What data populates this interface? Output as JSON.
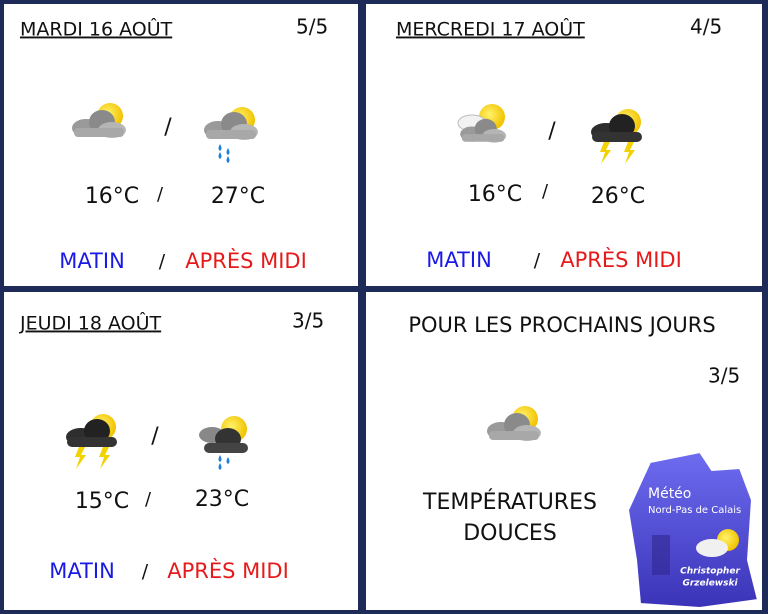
{
  "days": [
    {
      "title": "MARDI 16 AOÛT",
      "rating": "5/5",
      "separator": "/",
      "morning_temp": "16°C",
      "afternoon_temp": "27°C",
      "morning_label": "MATIN",
      "afternoon_label": "APRÈS MIDI"
    },
    {
      "title": "MERCREDI 17 AOÛT",
      "rating": "4/5",
      "separator": "/",
      "morning_temp": "16°C",
      "afternoon_temp": "26°C",
      "morning_label": "MATIN",
      "afternoon_label": "APRÈS MIDI"
    },
    {
      "title": "JEUDI 18 AOÛT",
      "rating": "3/5",
      "separator": "/",
      "morning_temp": "15°C",
      "afternoon_temp": "23°C",
      "morning_label": "MATIN",
      "afternoon_label": "APRÈS MIDI"
    }
  ],
  "outlook": {
    "title": "POUR LES PROCHAINS JOURS",
    "rating": "3/5",
    "text": [
      "TEMPÉRATURES",
      "DOUCES"
    ]
  },
  "logo": {
    "title": "Météo",
    "subtitle": "Nord-Pas de Calais",
    "author": [
      "Christopher",
      "Grzelewski"
    ]
  }
}
